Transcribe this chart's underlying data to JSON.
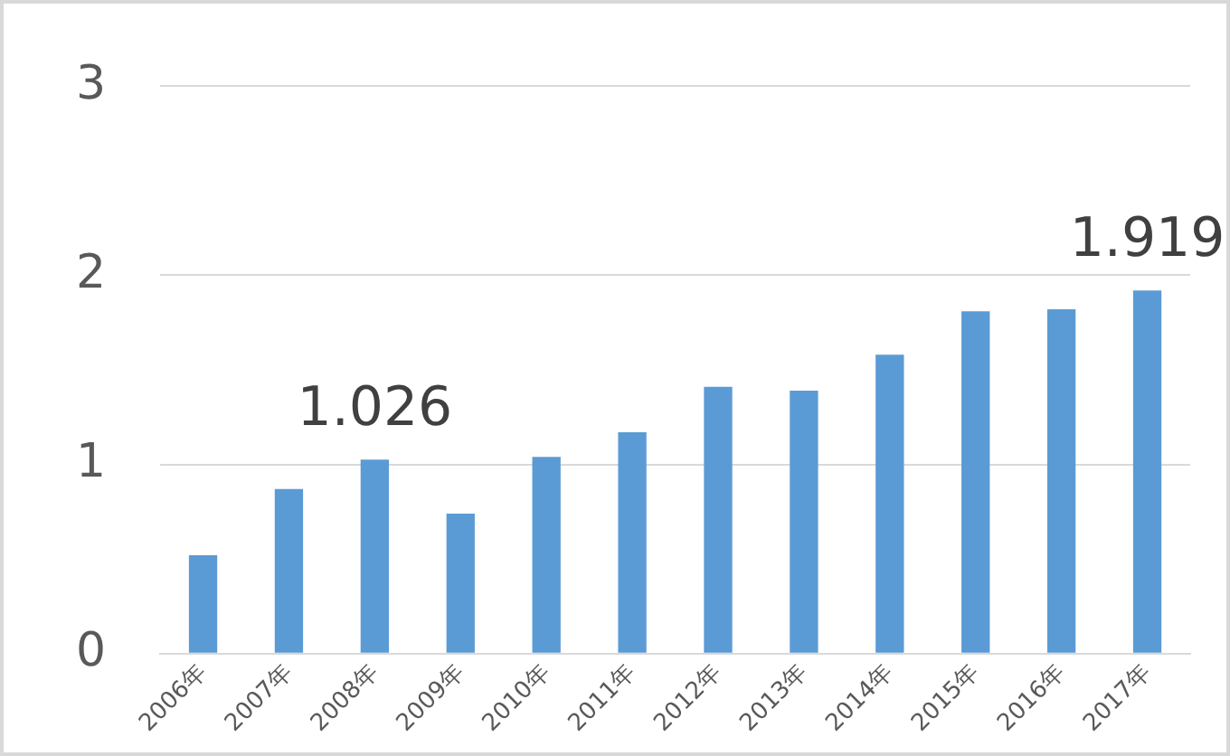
{
  "chart_data": {
    "type": "bar",
    "categories": [
      "2006年",
      "2007年",
      "2008年",
      "2009年",
      "2010年",
      "2011年",
      "2012年",
      "2013年",
      "2014年",
      "2015年",
      "2016年",
      "2017年"
    ],
    "values": [
      0.52,
      0.87,
      1.026,
      0.74,
      1.04,
      1.17,
      1.41,
      1.39,
      1.58,
      1.81,
      1.82,
      1.919
    ],
    "value_labels": [
      null,
      null,
      "1.026",
      null,
      null,
      null,
      null,
      null,
      null,
      null,
      null,
      "1.919"
    ],
    "color": "#5b9bd5",
    "ylim": [
      0,
      3
    ],
    "yticks": [
      0,
      1,
      2,
      3
    ],
    "grid": "y",
    "legend": false
  }
}
